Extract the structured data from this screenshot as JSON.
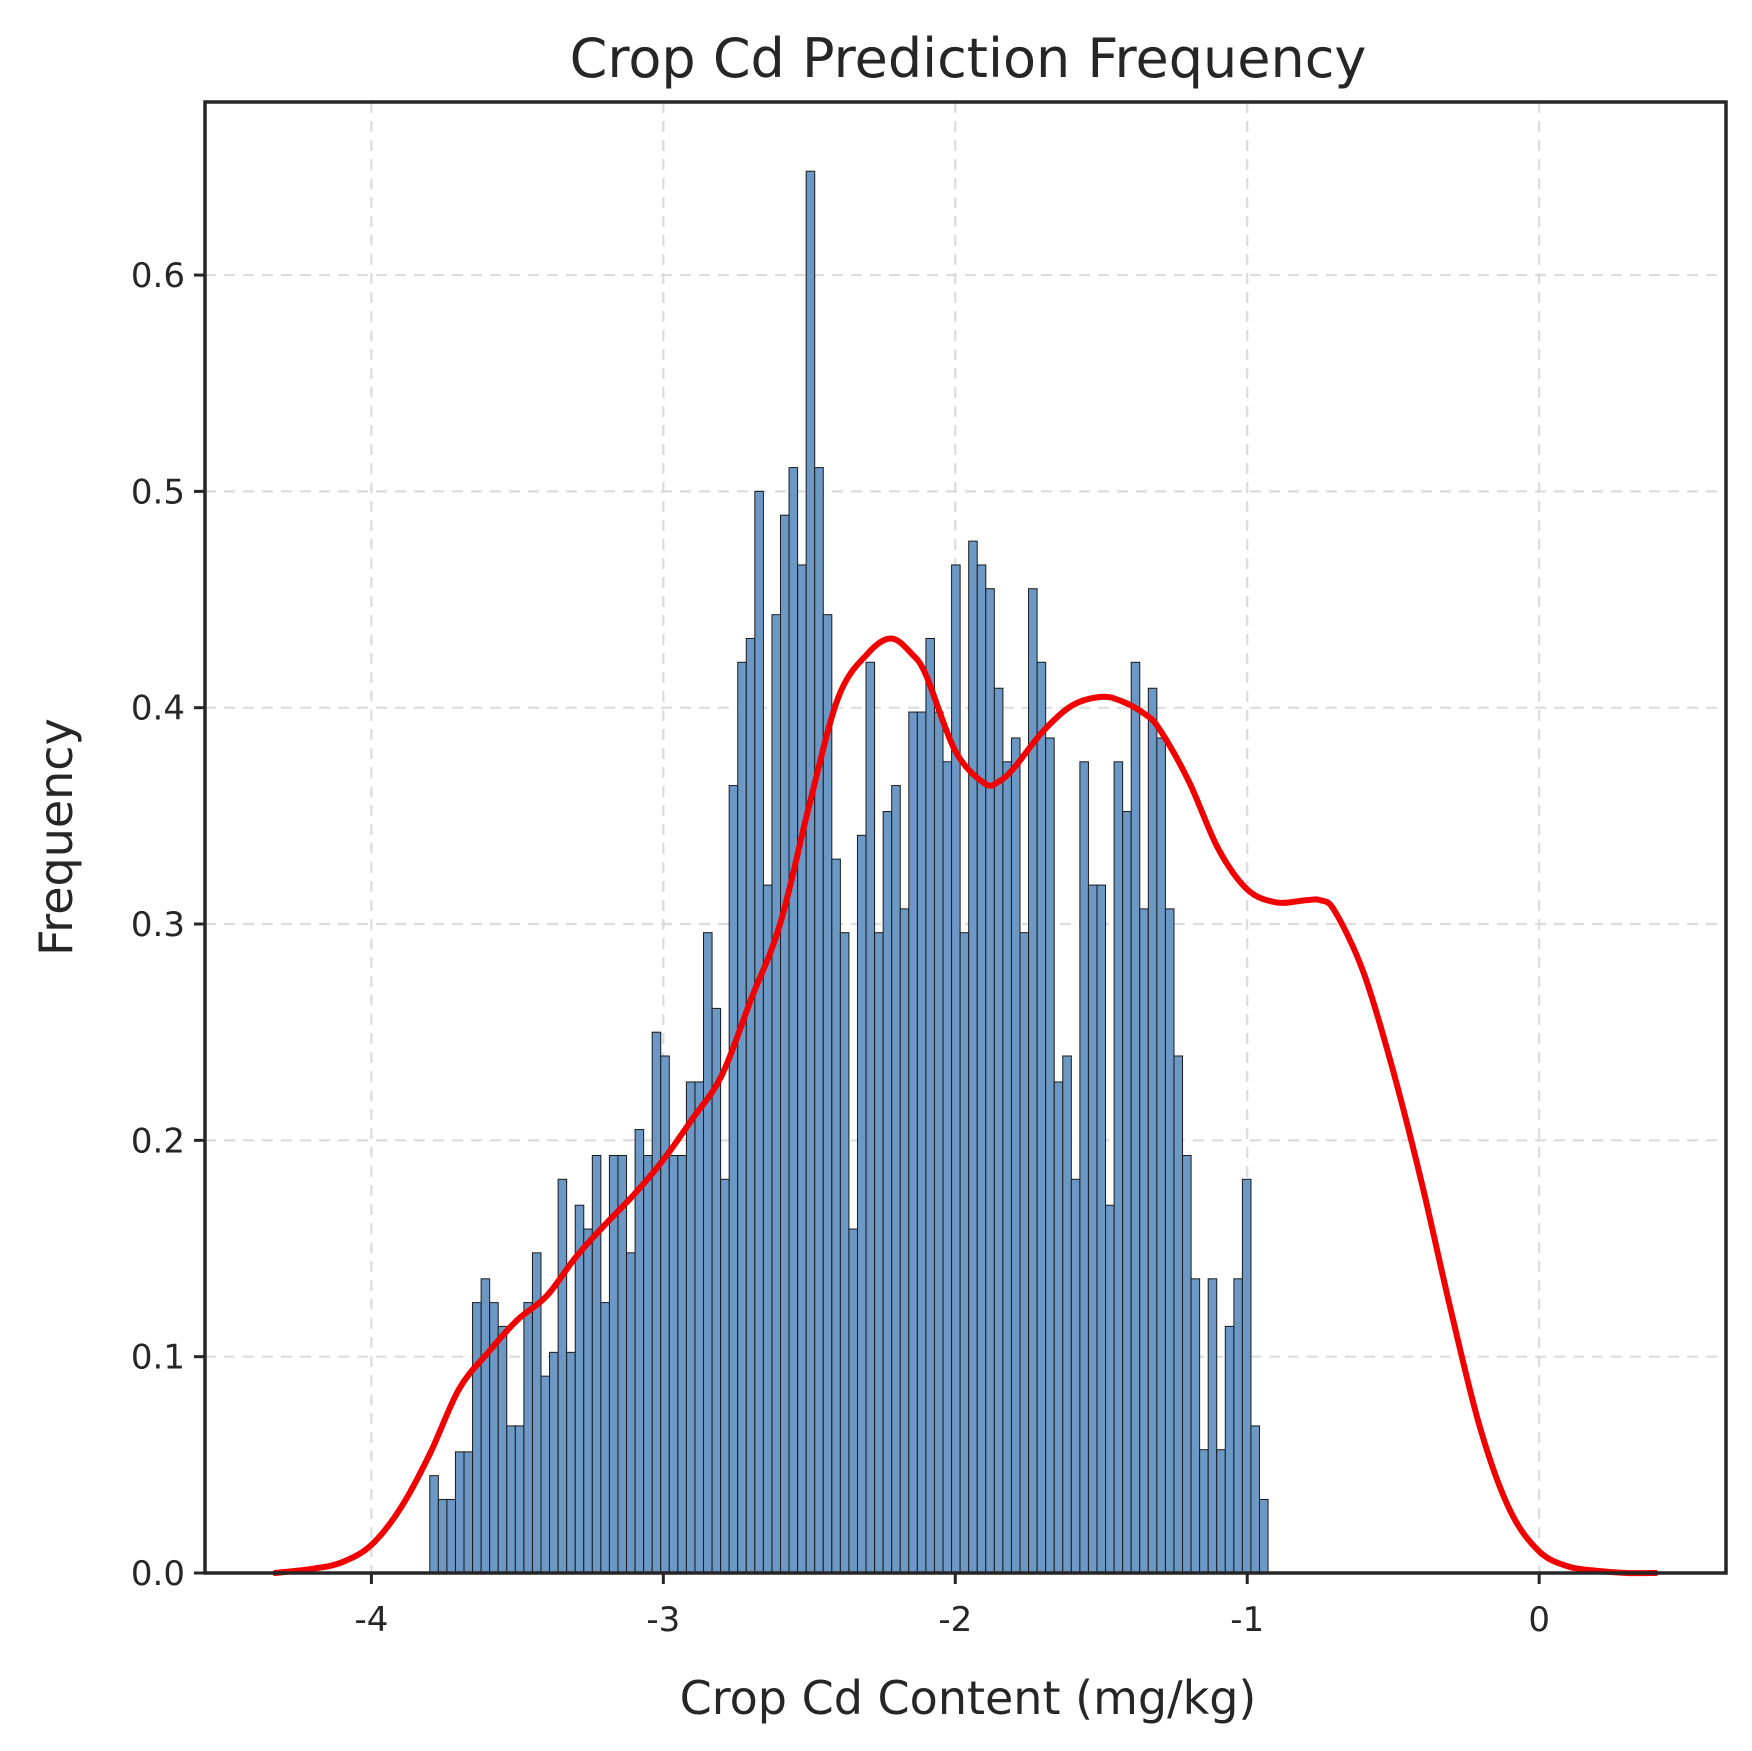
{
  "chart_data": {
    "type": "bar",
    "title": "Crop Cd Prediction Frequency",
    "xlabel": "Crop Cd Content (mg/kg)",
    "ylabel": "Frequency",
    "xlim": [
      -4.57,
      0.64
    ],
    "ylim": [
      0,
      0.68
    ],
    "xticks": [
      -4,
      -3,
      -2,
      -1,
      0
    ],
    "xtick_labels": [
      "-4",
      "-3",
      "-2",
      "-1",
      "0"
    ],
    "yticks": [
      0.0,
      0.1,
      0.2,
      0.3,
      0.4,
      0.5,
      0.6
    ],
    "ytick_labels": [
      "0.0",
      "0.1",
      "0.2",
      "0.3",
      "0.4",
      "0.5",
      "0.6"
    ],
    "grid": true,
    "histogram": {
      "bin_start": -3.8,
      "bin_width": 0.0293,
      "values": [
        0.045,
        0.034,
        0.034,
        0.056,
        0.056,
        0.125,
        0.136,
        0.125,
        0.114,
        0.068,
        0.068,
        0.125,
        0.148,
        0.091,
        0.102,
        0.182,
        0.102,
        0.17,
        0.159,
        0.193,
        0.125,
        0.193,
        0.193,
        0.148,
        0.205,
        0.193,
        0.25,
        0.239,
        0.193,
        0.193,
        0.227,
        0.227,
        0.296,
        0.261,
        0.182,
        0.364,
        0.421,
        0.432,
        0.5,
        0.318,
        0.443,
        0.489,
        0.511,
        0.466,
        0.648,
        0.511,
        0.443,
        0.33,
        0.296,
        0.159,
        0.341,
        0.421,
        0.296,
        0.352,
        0.364,
        0.307,
        0.398,
        0.398,
        0.432,
        0.398,
        0.375,
        0.466,
        0.296,
        0.477,
        0.466,
        0.455,
        0.409,
        0.375,
        0.386,
        0.296,
        0.455,
        0.421,
        0.386,
        0.227,
        0.239,
        0.182,
        0.375,
        0.318,
        0.318,
        0.17,
        0.375,
        0.352,
        0.421,
        0.307,
        0.409,
        0.386,
        0.307,
        0.239,
        0.193,
        0.136,
        0.057,
        0.136,
        0.057,
        0.114,
        0.136,
        0.182,
        0.068,
        0.034
      ],
      "color": "#6b98c4"
    },
    "kde": {
      "color": "#f20000",
      "x": [
        -4.33,
        -4.2,
        -4.1,
        -4.0,
        -3.9,
        -3.8,
        -3.7,
        -3.6,
        -3.5,
        -3.4,
        -3.3,
        -3.2,
        -3.1,
        -3.0,
        -2.9,
        -2.8,
        -2.7,
        -2.6,
        -2.5,
        -2.4,
        -2.3,
        -2.22,
        -2.15,
        -2.1,
        -2.0,
        -1.9,
        -1.85,
        -1.8,
        -1.7,
        -1.6,
        -1.5,
        -1.43,
        -1.35,
        -1.3,
        -1.2,
        -1.1,
        -1.0,
        -0.9,
        -0.8,
        -0.75,
        -0.7,
        -0.6,
        -0.5,
        -0.4,
        -0.3,
        -0.2,
        -0.1,
        0.0,
        0.1,
        0.2,
        0.3,
        0.4
      ],
      "y": [
        0.0,
        0.002,
        0.005,
        0.013,
        0.03,
        0.055,
        0.085,
        0.102,
        0.117,
        0.128,
        0.146,
        0.161,
        0.175,
        0.191,
        0.21,
        0.23,
        0.265,
        0.3,
        0.355,
        0.405,
        0.425,
        0.432,
        0.425,
        0.415,
        0.38,
        0.365,
        0.366,
        0.372,
        0.389,
        0.401,
        0.405,
        0.403,
        0.397,
        0.39,
        0.366,
        0.335,
        0.316,
        0.31,
        0.311,
        0.311,
        0.306,
        0.277,
        0.232,
        0.179,
        0.12,
        0.066,
        0.029,
        0.01,
        0.003,
        0.001,
        0.0,
        0.0
      ]
    }
  }
}
